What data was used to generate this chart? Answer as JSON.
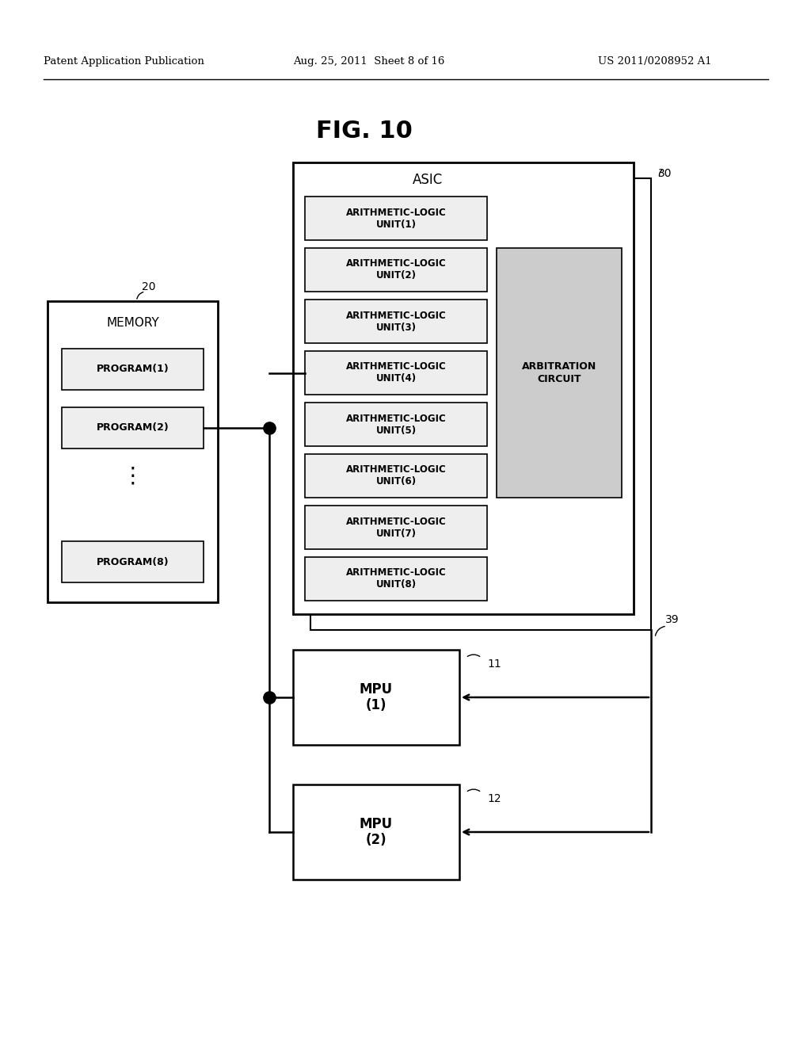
{
  "title": "FIG. 10",
  "header_left": "Patent Application Publication",
  "header_mid": "Aug. 25, 2011  Sheet 8 of 16",
  "header_right": "US 2011/0208952 A1",
  "bg_color": "#ffffff",
  "fig_label": "30",
  "memory_label": "20",
  "asic_label": "ASIC",
  "memory_box_label": "MEMORY",
  "programs": [
    "PROGRAM(1)",
    "PROGRAM(2)",
    "PROGRAM(8)"
  ],
  "alu_units": [
    "ARITHMETIC-LOGIC\nUNIT(1)",
    "ARITHMETIC-LOGIC\nUNIT(2)",
    "ARITHMETIC-LOGIC\nUNIT(3)",
    "ARITHMETIC-LOGIC\nUNIT(4)",
    "ARITHMETIC-LOGIC\nUNIT(5)",
    "ARITHMETIC-LOGIC\nUNIT(6)",
    "ARITHMETIC-LOGIC\nUNIT(7)",
    "ARITHMETIC-LOGIC\nUNIT(8)"
  ],
  "arbitration_label": "ARBITRATION\nCIRCUIT",
  "mpu1_label": "MPU\n(1)",
  "mpu2_label": "MPU\n(2)",
  "mpu1_ref": "11",
  "mpu2_ref": "12",
  "arb_ref": "39",
  "light_gray": "#cccccc",
  "box_fill": "#eeeeee",
  "white": "#ffffff",
  "black": "#000000"
}
